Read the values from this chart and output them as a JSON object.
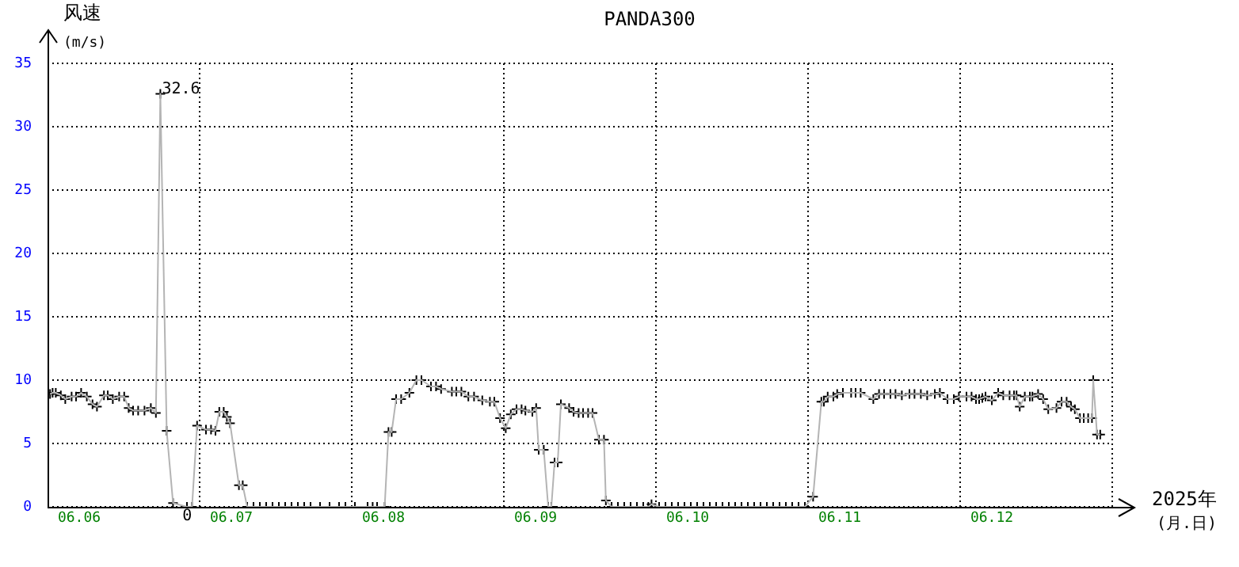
{
  "chart_data": {
    "type": "line",
    "title": "PANDA300",
    "ylabel": "风速\n(m/s)",
    "xlabel": "2025年\n(月.日)",
    "x": [
      "2025-06-05T19:24",
      "2025-06-05T19:48",
      "2025-06-05T20:18",
      "2025-06-05T21:06",
      "2025-06-05T21:48",
      "2025-06-05T22:48",
      "2025-06-05T23:30",
      "2025-06-06T00:18",
      "2025-06-06T01:12",
      "2025-06-06T02:06",
      "2025-06-06T02:48",
      "2025-06-06T03:54",
      "2025-06-06T04:30",
      "2025-06-06T05:18",
      "2025-06-06T06:18",
      "2025-06-06T07:06",
      "2025-06-06T07:48",
      "2025-06-06T08:30",
      "2025-06-06T09:18",
      "2025-06-06T10:18",
      "2025-06-06T11:18",
      "2025-06-06T12:06",
      "2025-06-06T12:48",
      "2025-06-06T13:48",
      "2025-06-06T14:48",
      "2025-06-06T17:00",
      "2025-06-06T17:48",
      "2025-06-06T18:36",
      "2025-06-06T20:00",
      "2025-06-06T20:48",
      "2025-06-06T21:30",
      "2025-06-06T22:06",
      "2025-06-06T22:48",
      "2025-06-06T23:18",
      "2025-06-06T23:48",
      "2025-06-07T01:12",
      "2025-06-07T01:48",
      "2025-06-07T02:30",
      "2025-06-07T03:30",
      "2025-06-07T04:30",
      "2025-06-07T05:30",
      "2025-06-07T06:30",
      "2025-06-07T07:30",
      "2025-06-07T08:30",
      "2025-06-07T09:30",
      "2025-06-07T10:30",
      "2025-06-07T11:30",
      "2025-06-07T12:30",
      "2025-06-07T14:00",
      "2025-06-07T15:30",
      "2025-06-07T17:00",
      "2025-06-07T18:00",
      "2025-06-07T19:30",
      "2025-06-07T21:30",
      "2025-06-07T22:18",
      "2025-06-07T23:00",
      "2025-06-08T00:12",
      "2025-06-08T00:48",
      "2025-06-08T01:18",
      "2025-06-08T02:00",
      "2025-06-08T02:48",
      "2025-06-08T04:06",
      "2025-06-08T05:12",
      "2025-06-08T06:00",
      "2025-06-08T07:30",
      "2025-06-08T08:18",
      "2025-06-08T09:06",
      "2025-06-08T10:48",
      "2025-06-08T11:30",
      "2025-06-08T12:18",
      "2025-06-08T13:24",
      "2025-06-08T14:18",
      "2025-06-08T15:36",
      "2025-06-08T16:48",
      "2025-06-08T17:30",
      "2025-06-08T18:24",
      "2025-06-08T19:18",
      "2025-06-08T20:06",
      "2025-06-08T21:00",
      "2025-06-08T21:48",
      "2025-06-08T22:24",
      "2025-06-08T23:30",
      "2025-06-09T00:06",
      "2025-06-09T00:30",
      "2025-06-09T01:18",
      "2025-06-09T02:00",
      "2025-06-09T02:30",
      "2025-06-09T03:00",
      "2025-06-09T03:30",
      "2025-06-09T04:00",
      "2025-06-09T05:18",
      "2025-06-09T06:00",
      "2025-06-09T06:48",
      "2025-06-09T07:30",
      "2025-06-09T08:18",
      "2025-06-09T09:00",
      "2025-06-09T10:00",
      "2025-06-09T10:48",
      "2025-06-09T11:06",
      "2025-06-09T12:00",
      "2025-06-09T13:00",
      "2025-06-09T14:00",
      "2025-06-09T15:00",
      "2025-06-09T16:00",
      "2025-06-09T17:00",
      "2025-06-09T17:48",
      "2025-06-09T18:18",
      "2025-06-09T19:30",
      "2025-06-09T20:30",
      "2025-06-09T21:30",
      "2025-06-09T22:30",
      "2025-06-09T23:30",
      "2025-06-10T00:30",
      "2025-06-10T01:30",
      "2025-06-10T02:30",
      "2025-06-10T03:30",
      "2025-06-10T04:30",
      "2025-06-10T05:30",
      "2025-06-10T06:30",
      "2025-06-10T07:30",
      "2025-06-10T08:30",
      "2025-06-10T09:30",
      "2025-06-10T10:30",
      "2025-06-10T11:30",
      "2025-06-10T12:30",
      "2025-06-10T13:30",
      "2025-06-10T14:30",
      "2025-06-10T15:30",
      "2025-06-10T16:30",
      "2025-06-10T17:30",
      "2025-06-10T18:30",
      "2025-06-10T19:48",
      "2025-06-10T21:06",
      "2025-06-10T21:30",
      "2025-06-10T22:06",
      "2025-06-10T23:00",
      "2025-06-10T23:36",
      "2025-06-11T00:30",
      "2025-06-11T01:48",
      "2025-06-11T02:30",
      "2025-06-11T03:18",
      "2025-06-11T05:18",
      "2025-06-11T06:12",
      "2025-06-11T07:00",
      "2025-06-11T08:00",
      "2025-06-11T08:48",
      "2025-06-11T09:48",
      "2025-06-11T11:00",
      "2025-06-11T11:48",
      "2025-06-11T12:48",
      "2025-06-11T13:48",
      "2025-06-11T15:00",
      "2025-06-11T15:48",
      "2025-06-11T17:00",
      "2025-06-11T18:00",
      "2025-06-11T18:48",
      "2025-06-11T20:00",
      "2025-06-11T20:48",
      "2025-06-11T21:30",
      "2025-06-11T22:00",
      "2025-06-11T22:30",
      "2025-06-11T23:00",
      "2025-06-12T00:00",
      "2025-06-12T01:00",
      "2025-06-12T01:48",
      "2025-06-12T02:48",
      "2025-06-12T03:30",
      "2025-06-12T03:54",
      "2025-06-12T04:24",
      "2025-06-12T05:12",
      "2025-06-12T06:00",
      "2025-06-12T06:24",
      "2025-06-12T07:18",
      "2025-06-12T08:06",
      "2025-06-12T08:54",
      "2025-06-12T10:12",
      "2025-06-12T11:00",
      "2025-06-12T11:48",
      "2025-06-12T12:30",
      "2025-06-12T13:06",
      "2025-06-12T13:54",
      "2025-06-12T14:30",
      "2025-06-12T15:12",
      "2025-06-12T15:48",
      "2025-06-12T16:00",
      "2025-06-12T16:36",
      "2025-06-12T17:06"
    ],
    "series": [
      {
        "type": "line",
        "color": "#b4b4b4",
        "marker": "none",
        "values": [
          8.9,
          9.0,
          9.0,
          8.8,
          8.5,
          8.7,
          8.7,
          9.0,
          8.7,
          8.1,
          7.9,
          8.8,
          8.8,
          8.5,
          8.7,
          8.7,
          7.8,
          7.6,
          7.6,
          7.6,
          7.8,
          7.4,
          32.6,
          6.0,
          0.3,
          0,
          0,
          6.4,
          6.1,
          6.1,
          6.0,
          7.5,
          7.5,
          7.1,
          6.6,
          1.7,
          1.7,
          0,
          0,
          0,
          0,
          0,
          0,
          0,
          0,
          0,
          0,
          0,
          0,
          0,
          0,
          0,
          0,
          0,
          0,
          0,
          0,
          5.9,
          5.9,
          8.5,
          8.5,
          9.0,
          10.0,
          10.0,
          9.5,
          9.5,
          9.3,
          9.1,
          9.1,
          9.1,
          8.7,
          8.7,
          8.4,
          8.3,
          8.3,
          7.0,
          6.2,
          7.3,
          7.7,
          7.7,
          7.6,
          7.5,
          7.8,
          4.5,
          4.5,
          0,
          0,
          3.5,
          3.5,
          8.1,
          7.8,
          7.5,
          7.4,
          7.4,
          7.4,
          7.4,
          5.3,
          5.3,
          0.5,
          0,
          0,
          0,
          0,
          0,
          0,
          0,
          0.2,
          0,
          0,
          0,
          0,
          0,
          0,
          0,
          0,
          0,
          0,
          0,
          0,
          0,
          0,
          0,
          0,
          0,
          0,
          0,
          0,
          0,
          0,
          0,
          0,
          0.8,
          8.3,
          8.3,
          8.7,
          8.7,
          8.9,
          9.0,
          9.0,
          9.0,
          9.0,
          8.5,
          8.9,
          8.9,
          8.9,
          8.9,
          8.8,
          8.9,
          8.9,
          8.9,
          8.8,
          8.9,
          9.0,
          8.5,
          8.5,
          8.7,
          8.7,
          8.7,
          8.5,
          8.5,
          8.6,
          8.7,
          8.4,
          9.0,
          8.8,
          8.8,
          8.8,
          8.8,
          7.9,
          8.7,
          8.7,
          8.7,
          8.9,
          8.5,
          7.7,
          7.8,
          8.3,
          8.3,
          7.9,
          7.7,
          7.0,
          7.0,
          7.0,
          7.0,
          10.0,
          5.7,
          5.7
        ]
      },
      {
        "type": "scatter",
        "color": "#000000",
        "marker": "cross",
        "values": [
          8.9,
          9.0,
          9.0,
          8.8,
          8.5,
          8.7,
          8.7,
          9.0,
          8.7,
          8.1,
          7.9,
          8.8,
          8.8,
          8.5,
          8.7,
          8.7,
          7.8,
          7.6,
          7.6,
          7.6,
          7.8,
          7.4,
          32.6,
          6.0,
          0.3,
          0,
          0,
          6.4,
          6.1,
          6.1,
          6.0,
          7.5,
          7.5,
          7.1,
          6.6,
          1.7,
          1.7,
          0,
          0,
          0,
          0,
          0,
          0,
          0,
          0,
          0,
          0,
          0,
          0,
          0,
          0,
          0,
          0,
          0,
          0,
          0,
          0,
          5.9,
          5.9,
          8.5,
          8.5,
          9.0,
          10.0,
          10.0,
          9.5,
          9.5,
          9.3,
          9.1,
          9.1,
          9.1,
          8.7,
          8.7,
          8.4,
          8.3,
          8.3,
          7.0,
          6.2,
          7.3,
          7.7,
          7.7,
          7.6,
          7.5,
          7.8,
          4.5,
          4.5,
          0,
          0,
          3.5,
          3.5,
          8.1,
          7.8,
          7.5,
          7.4,
          7.4,
          7.4,
          7.4,
          5.3,
          5.3,
          0.5,
          0,
          0,
          0,
          0,
          0,
          0,
          0,
          0.2,
          0,
          0,
          0,
          0,
          0,
          0,
          0,
          0,
          0,
          0,
          0,
          0,
          0,
          0,
          0,
          0,
          0,
          0,
          0,
          0,
          0,
          0,
          0,
          0,
          0.8,
          8.3,
          8.3,
          8.7,
          8.7,
          8.9,
          9.0,
          9.0,
          9.0,
          9.0,
          8.5,
          8.9,
          8.9,
          8.9,
          8.9,
          8.8,
          8.9,
          8.9,
          8.9,
          8.8,
          8.9,
          9.0,
          8.5,
          8.5,
          8.7,
          8.7,
          8.7,
          8.5,
          8.5,
          8.6,
          8.7,
          8.4,
          9.0,
          8.8,
          8.8,
          8.8,
          8.8,
          7.9,
          8.7,
          8.7,
          8.7,
          8.9,
          8.5,
          7.7,
          7.8,
          8.3,
          8.3,
          7.9,
          7.7,
          7.0,
          7.0,
          7.0,
          7.0,
          10.0,
          5.7,
          5.7
        ]
      }
    ],
    "xlim": [
      "2025-06-05T19:00",
      "2025-06-12T19:00"
    ],
    "xticks": [
      {
        "value": "2025-06-06",
        "label": "06.06"
      },
      {
        "value": "2025-06-06T19:00",
        "label": null
      },
      {
        "value": "2025-06-07",
        "label": "06.07"
      },
      {
        "value": "2025-06-07T19:00",
        "label": null
      },
      {
        "value": "2025-06-08",
        "label": "06.08"
      },
      {
        "value": "2025-06-08T19:00",
        "label": null
      },
      {
        "value": "2025-06-09",
        "label": "06.09"
      },
      {
        "value": "2025-06-09T19:00",
        "label": null
      },
      {
        "value": "2025-06-10",
        "label": "06.10"
      },
      {
        "value": "2025-06-10T19:00",
        "label": null
      },
      {
        "value": "2025-06-11",
        "label": "06.11"
      },
      {
        "value": "2025-06-11T19:00",
        "label": null
      },
      {
        "value": "2025-06-12",
        "label": "06.12"
      },
      {
        "value": "2025-06-12T19:00",
        "label": null
      }
    ],
    "ylim": [
      0,
      35
    ],
    "yticks": [
      0,
      5,
      10,
      15,
      20,
      25,
      30,
      35
    ],
    "grid": true,
    "legend": false,
    "annotations": [
      {
        "text": "32.6",
        "x": "2025-06-06T12:48",
        "y": 32.6
      },
      {
        "text": "0",
        "x": "2025-06-06T17:48",
        "y": 0
      }
    ]
  }
}
